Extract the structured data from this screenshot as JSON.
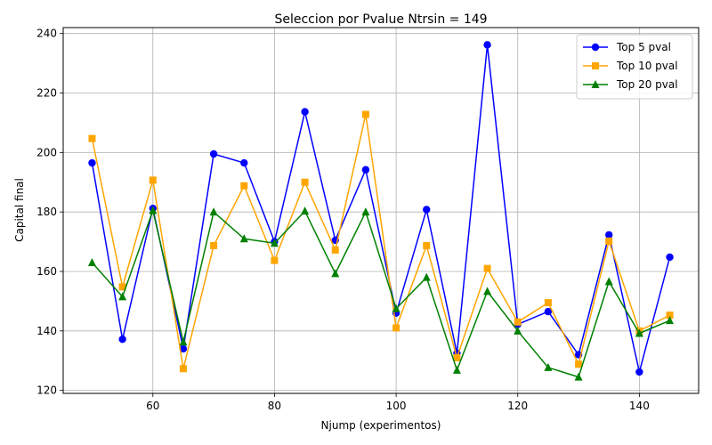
{
  "chart_data": {
    "type": "line",
    "title": "Seleccion por Pvalue Ntrsin = 149",
    "xlabel": "Njump (experimentos)",
    "ylabel": "Capital final",
    "xlim": [
      45.25,
      149.75
    ],
    "ylim": [
      119,
      242
    ],
    "xticks": [
      60,
      80,
      100,
      120,
      140
    ],
    "yticks": [
      120,
      140,
      160,
      180,
      200,
      220,
      240
    ],
    "grid": true,
    "legend_position": "top-right",
    "x": [
      50,
      55,
      60,
      65,
      70,
      75,
      80,
      85,
      90,
      95,
      100,
      105,
      110,
      115,
      120,
      125,
      130,
      135,
      140,
      145
    ],
    "series": [
      {
        "name": "Top 5 pval",
        "color": "#0000ff",
        "marker": "circle",
        "values": [
          196.5,
          137.2,
          181.2,
          134.0,
          199.5,
          196.5,
          170.0,
          213.7,
          170.5,
          194.2,
          146.0,
          180.8,
          132.5,
          236.2,
          142.2,
          146.5,
          132.0,
          172.3,
          126.2,
          164.8
        ]
      },
      {
        "name": "Top 10 pval",
        "color": "#ffa500",
        "marker": "square",
        "values": [
          204.7,
          154.8,
          190.7,
          127.3,
          168.7,
          188.8,
          163.7,
          190.0,
          167.2,
          212.8,
          141.0,
          168.7,
          131.0,
          161.0,
          143.0,
          149.5,
          128.8,
          170.2,
          140.0,
          145.3
        ]
      },
      {
        "name": "Top 20 pval",
        "color": "#008000",
        "marker": "triangle",
        "values": [
          163.0,
          151.5,
          180.5,
          136.3,
          180.0,
          171.0,
          169.5,
          180.3,
          159.3,
          180.0,
          147.5,
          158.0,
          126.8,
          153.3,
          140.0,
          127.7,
          124.5,
          156.6,
          139.2,
          143.5
        ]
      }
    ]
  }
}
